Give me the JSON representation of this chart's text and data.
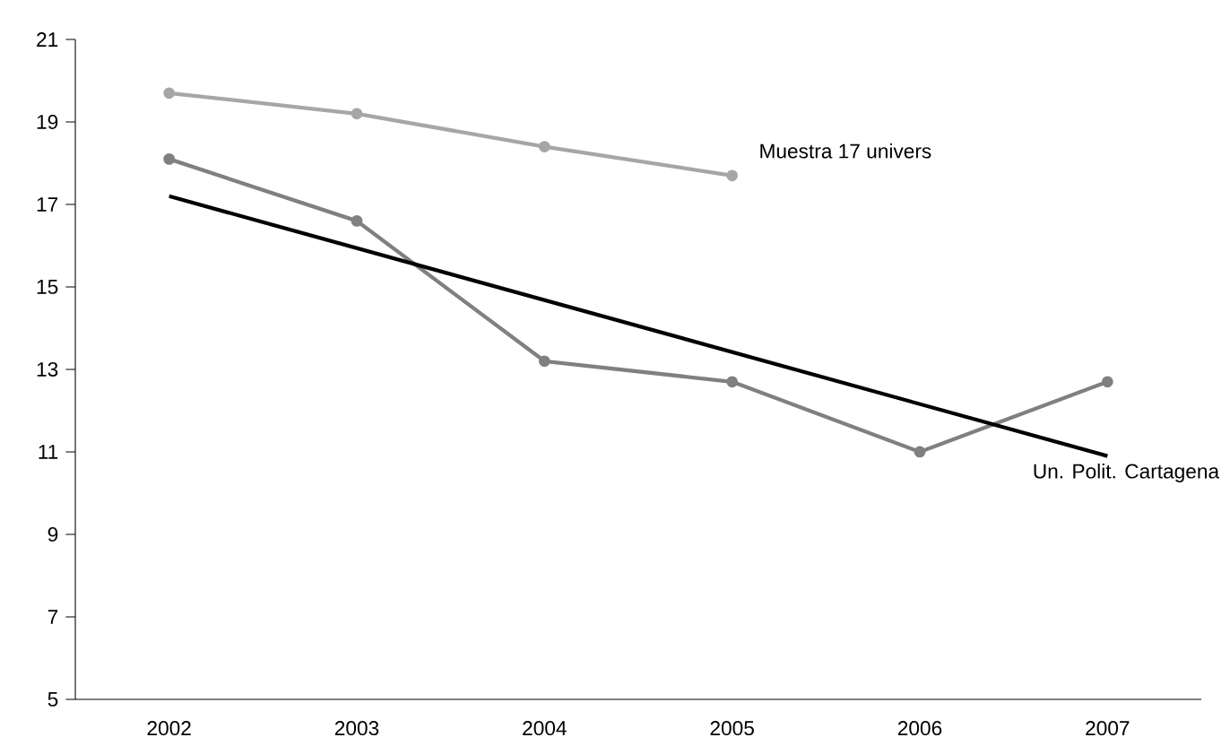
{
  "chart_data": {
    "type": "line",
    "categories": [
      "2002",
      "2003",
      "2004",
      "2005",
      "2006",
      "2007"
    ],
    "series": [
      {
        "name": "Muestra 17 univers",
        "color": "#a6a6a6",
        "marker": "circle",
        "values": [
          19.7,
          19.2,
          18.4,
          17.7,
          null,
          null
        ]
      },
      {
        "name": "Un. Polit. Cartagena",
        "color": "#808080",
        "marker": "circle",
        "values": [
          18.1,
          16.6,
          13.2,
          12.7,
          11.0,
          12.7
        ]
      },
      {
        "color": "#000000",
        "marker": "none",
        "values": [
          17.2,
          null,
          null,
          null,
          null,
          10.9
        ]
      }
    ],
    "ylim": [
      5,
      21
    ],
    "yticks": [
      5,
      7,
      9,
      11,
      13,
      15,
      17,
      19,
      21
    ],
    "grid": false,
    "legend": false,
    "line_style": "solid"
  }
}
